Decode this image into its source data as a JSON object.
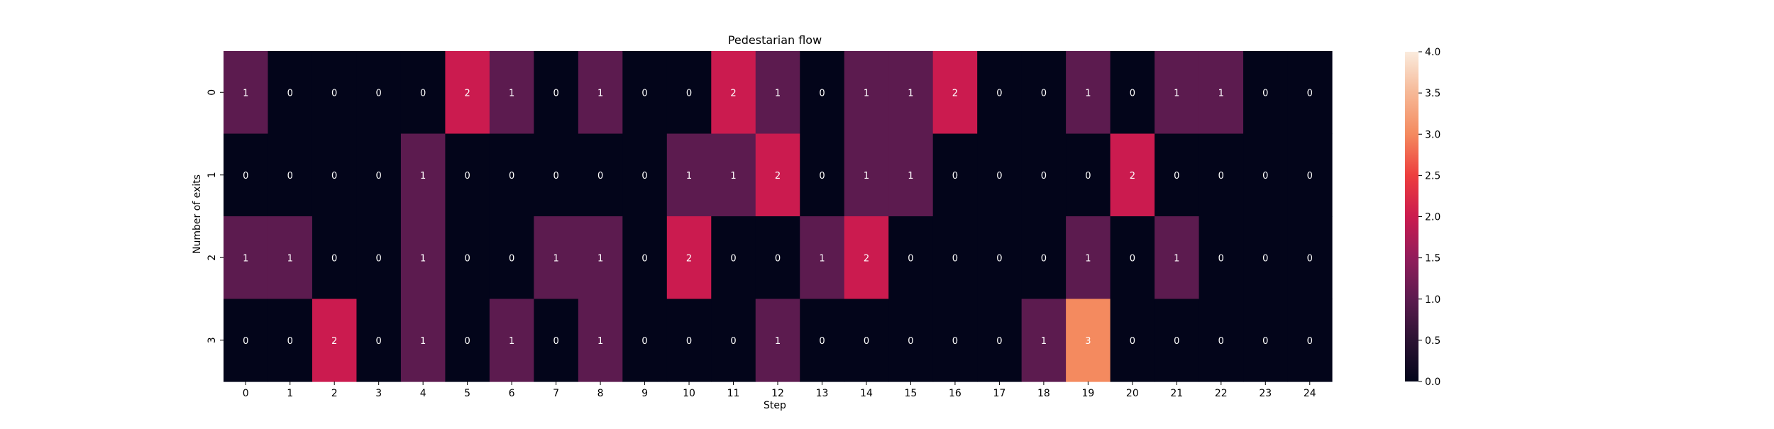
{
  "chart_data": {
    "type": "heatmap",
    "title": "Pedestarian flow",
    "xlabel": "Step",
    "ylabel": "Number of exits",
    "x_categories": [
      "0",
      "1",
      "2",
      "3",
      "4",
      "5",
      "6",
      "7",
      "8",
      "9",
      "10",
      "11",
      "12",
      "13",
      "14",
      "15",
      "16",
      "17",
      "18",
      "19",
      "20",
      "21",
      "22",
      "23",
      "24"
    ],
    "y_categories": [
      "0",
      "1",
      "2",
      "3"
    ],
    "values": [
      [
        1,
        0,
        0,
        0,
        0,
        2,
        1,
        0,
        1,
        0,
        0,
        2,
        1,
        0,
        1,
        1,
        2,
        0,
        0,
        1,
        0,
        1,
        1,
        0,
        0
      ],
      [
        0,
        0,
        0,
        0,
        1,
        0,
        0,
        0,
        0,
        0,
        1,
        1,
        2,
        0,
        1,
        1,
        0,
        0,
        0,
        0,
        2,
        0,
        0,
        0,
        0
      ],
      [
        1,
        1,
        0,
        0,
        1,
        0,
        0,
        1,
        1,
        0,
        2,
        0,
        0,
        1,
        2,
        0,
        0,
        0,
        0,
        1,
        0,
        1,
        0,
        0,
        0
      ],
      [
        0,
        0,
        2,
        0,
        1,
        0,
        1,
        0,
        1,
        0,
        0,
        0,
        1,
        0,
        0,
        0,
        0,
        0,
        1,
        3,
        0,
        0,
        0,
        0,
        0
      ]
    ],
    "colorbar": {
      "range": [
        0,
        4
      ],
      "ticks": [
        "0.0",
        "0.5",
        "1.0",
        "1.5",
        "2.0",
        "2.5",
        "3.0",
        "3.5",
        "4.0"
      ]
    },
    "colormap": "rocket",
    "annotations": true,
    "grid": false,
    "colors": {
      "0": "#03051a",
      "1": "#5c1b4f",
      "2": "#cb1b4f",
      "3": "#f48a5f"
    }
  }
}
